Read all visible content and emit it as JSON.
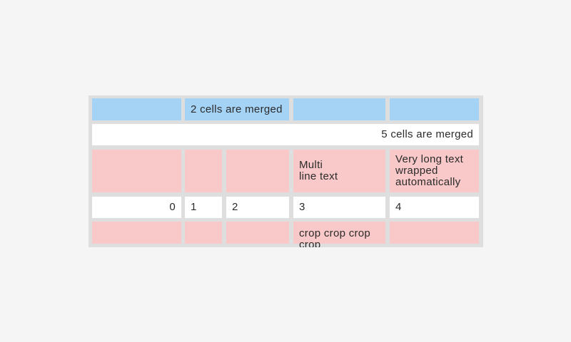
{
  "table": {
    "rows": [
      {
        "name": "header-row",
        "style": "blue",
        "cells": [
          {
            "text": ""
          },
          {
            "text": "2 cells are merged",
            "merged": 2
          },
          {
            "text": ""
          },
          {
            "text": ""
          }
        ]
      },
      {
        "name": "full-merge-row",
        "style": "white",
        "cells": [
          {
            "text": "5 cells are merged",
            "merged": 5,
            "align": "right"
          }
        ]
      },
      {
        "name": "multiline-row",
        "style": "pink",
        "cells": [
          {
            "text": ""
          },
          {
            "text": ""
          },
          {
            "text": ""
          },
          {
            "text": "Multi\nline text"
          },
          {
            "text": "Very long text wrapped automatically"
          }
        ]
      },
      {
        "name": "number-row",
        "style": "white",
        "cells": [
          {
            "text": "0",
            "align": "right"
          },
          {
            "text": "1"
          },
          {
            "text": "2"
          },
          {
            "text": "3"
          },
          {
            "text": "4"
          }
        ]
      },
      {
        "name": "cropped-row",
        "style": "pink",
        "cells": [
          {
            "text": ""
          },
          {
            "text": ""
          },
          {
            "text": ""
          },
          {
            "text": "crop crop crop crop",
            "cropped": true
          },
          {
            "text": ""
          }
        ]
      }
    ]
  },
  "colors": {
    "page_background": "#f5f5f5",
    "table_background": "#dedede",
    "header_cell": "#a5d3f6",
    "accent_cell": "#f9c8c8",
    "plain_cell": "#ffffff",
    "text": "#2b2b2b"
  }
}
